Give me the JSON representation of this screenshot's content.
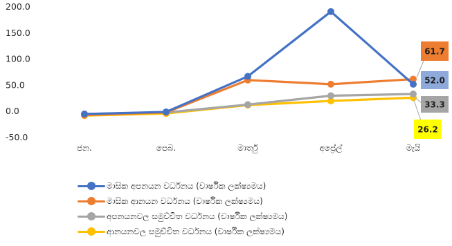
{
  "chart_data": {
    "type": "line",
    "title": "",
    "xlabel": "",
    "ylabel": "",
    "categories": [
      "ජන.",
      "පෙබ.",
      "මාර්තු",
      "අප්‍රේල්",
      "මැයි"
    ],
    "ylim": [
      -50,
      200
    ],
    "yticks": [
      -50,
      0,
      50,
      100,
      150,
      200
    ],
    "ytick_labels": [
      "-50.0",
      "0.0",
      "50.0",
      "100.0",
      "150.0",
      "200.0"
    ],
    "grid": false,
    "legend_position": "bottom",
    "series": [
      {
        "name": "මාසික අපනයන වර්ධනය (වාර්ෂික ලක්ෂ්‍යමය)",
        "color": "#4472c4",
        "values": [
          -5,
          -1,
          67,
          191,
          52.0
        ],
        "end_label": "52.0",
        "label_bg": "#8eaadb",
        "label_color": "#1f1f1f"
      },
      {
        "name": "මාසික ආනයන වර්ධනය (වාර්ෂික ලක්ෂ්‍යමය)",
        "color": "#ed7d31",
        "values": [
          -7,
          -2,
          60,
          52,
          61.7
        ],
        "end_label": "61.7",
        "label_bg": "#ed7d31",
        "label_color": "#1f1f1f"
      },
      {
        "name": "අපනයනවල සමුච්චිත වර්ධනය (වාර්ෂික ලක්ෂ්‍යමය)",
        "color": "#a5a5a5",
        "values": [
          -5,
          -2,
          13,
          30,
          33.3
        ],
        "end_label": "33.3",
        "label_bg": "#a5a5a5",
        "label_color": "#1f1f1f"
      },
      {
        "name": "ආනයනවල සමුච්චිත වර්ධනය (වාර්ෂික ලක්ෂ්‍යමය)",
        "color": "#ffc000",
        "values": [
          -8,
          -4,
          12,
          20,
          26.2
        ],
        "end_label": "26.2",
        "label_bg": "#ffff00",
        "label_color": "#1f1f1f"
      }
    ]
  },
  "title_fragment": "                                                               "
}
